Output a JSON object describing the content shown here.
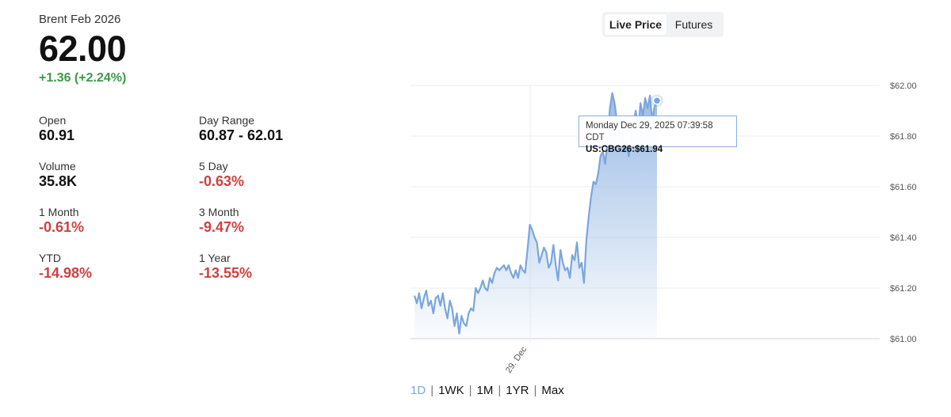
{
  "instrument": {
    "name": "Brent Feb 2026",
    "last": "62.00",
    "change": "+1.36 (+2.24%)"
  },
  "stats": {
    "open": {
      "label": "Open",
      "value": "60.91"
    },
    "day_range": {
      "label": "Day Range",
      "value": "60.87 - 62.01"
    },
    "volume": {
      "label": "Volume",
      "value": "35.8K"
    },
    "five_day": {
      "label": "5 Day",
      "value": "-0.63%"
    },
    "one_month": {
      "label": "1 Month",
      "value": "-0.61%"
    },
    "three_month": {
      "label": "3 Month",
      "value": "-9.47%"
    },
    "ytd": {
      "label": "YTD",
      "value": "-14.98%"
    },
    "one_year": {
      "label": "1 Year",
      "value": "-13.55%"
    }
  },
  "toggle": {
    "live_price": "Live Price",
    "futures": "Futures",
    "selected": "Live Price"
  },
  "tooltip": {
    "datetime": "Monday Dec 29, 2025 07:39:58 CDT",
    "symbol_value": "US:CBG26:$61.94"
  },
  "range_buttons": [
    "1D",
    "1WK",
    "1M",
    "1YR",
    "Max"
  ],
  "range_selected": "1D",
  "colors": {
    "line": "#7aa6dc",
    "positive": "#3c9a4a",
    "negative": "#cf4040"
  },
  "chart_data": {
    "type": "area",
    "title": "",
    "xlabel": "",
    "ylabel": "",
    "ylim": [
      61.0,
      62.0
    ],
    "yticks": [
      62.0,
      61.8,
      61.6,
      61.4,
      61.2,
      61.0
    ],
    "ytick_labels": [
      "$62.00",
      "$61.80",
      "$61.60",
      "$61.40",
      "$61.20",
      "$61.00"
    ],
    "xtick_labels": [
      "29. Dec"
    ],
    "grid": true,
    "series": [
      {
        "values": [
          61.17,
          61.14,
          61.18,
          61.12,
          61.16,
          61.19,
          61.13,
          61.15,
          61.1,
          61.16,
          61.17,
          61.13,
          61.18,
          61.12,
          61.08,
          61.15,
          61.12,
          61.05,
          61.1,
          61.02,
          61.09,
          61.06,
          61.05,
          61.1,
          61.12,
          61.11,
          61.2,
          61.18,
          61.2,
          61.23,
          61.2,
          61.19,
          61.24,
          61.22,
          61.26,
          61.28,
          61.27,
          61.28,
          61.29,
          61.27,
          61.29,
          61.26,
          61.24,
          61.27,
          61.24,
          61.29,
          61.27,
          61.26,
          61.35,
          61.45,
          61.43,
          61.4,
          61.38,
          61.3,
          61.33,
          61.36,
          61.34,
          61.28,
          61.3,
          61.37,
          61.29,
          61.23,
          61.35,
          61.3,
          61.27,
          61.28,
          61.24,
          61.33,
          61.31,
          61.38,
          61.28,
          61.3,
          61.22,
          61.39,
          61.48,
          61.56,
          61.62,
          61.61,
          61.65,
          61.72,
          61.74,
          61.69,
          61.78,
          61.91,
          61.97,
          61.93,
          61.86,
          61.8,
          61.84,
          61.74,
          61.78,
          61.72,
          61.8,
          61.86,
          61.9,
          61.82,
          61.93,
          61.88,
          61.95,
          61.91,
          61.96,
          61.86,
          61.92,
          61.94
        ]
      }
    ]
  }
}
